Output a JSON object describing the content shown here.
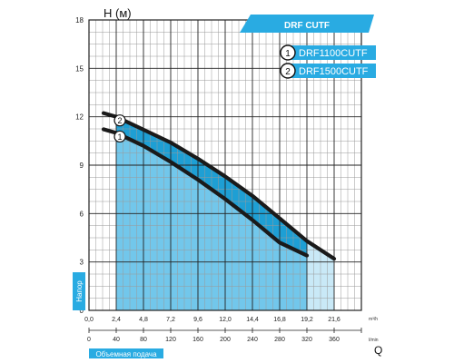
{
  "colors": {
    "accent": "#29abe2",
    "fill_dark": "#1e9fd4",
    "fill_light": "#c9e9f7",
    "curve": "#1a1a1a",
    "grid": "#222222",
    "grid_minor": "#9a9a9a"
  },
  "chart_data": {
    "type": "line",
    "title": "DRF CUTF",
    "ylabel": "H (м)",
    "ylabel_side": "Напор",
    "xlabel": "Q",
    "xlabel_side": "Объемная подача",
    "x_unit_top": "m³/h",
    "x_unit_bottom": "l/min",
    "xlim": [
      0,
      24
    ],
    "ylim": [
      0,
      18
    ],
    "x_ticks_top": [
      "0,0",
      "2,4",
      "4,8",
      "7,2",
      "9,6",
      "12,0",
      "14,4",
      "16,8",
      "19,2",
      "21,6"
    ],
    "x_ticks_bottom": [
      "0",
      "40",
      "80",
      "120",
      "160",
      "200",
      "240",
      "280",
      "320",
      "360"
    ],
    "y_ticks": [
      "0",
      "3",
      "6",
      "9",
      "12",
      "15",
      "18"
    ],
    "grid": true,
    "legend": {
      "placement": "top-right",
      "entries": [
        {
          "marker": "1",
          "label": "DRF1100CUTF"
        },
        {
          "marker": "2",
          "label": "DRF1500CUTF"
        }
      ]
    },
    "series": [
      {
        "name": "DRF1100CUTF",
        "marker": "1",
        "x": [
          2.4,
          4.8,
          7.2,
          9.6,
          12.0,
          14.4,
          16.8,
          19.2
        ],
        "y": [
          11.0,
          10.2,
          9.2,
          8.1,
          6.9,
          5.6,
          4.2,
          3.4
        ]
      },
      {
        "name": "DRF1500CUTF",
        "marker": "2",
        "x": [
          2.4,
          4.8,
          7.2,
          9.6,
          12.0,
          14.4,
          16.8,
          19.2,
          21.6
        ],
        "y": [
          12.0,
          11.2,
          10.4,
          9.4,
          8.3,
          7.1,
          5.7,
          4.3,
          3.2
        ]
      }
    ]
  }
}
